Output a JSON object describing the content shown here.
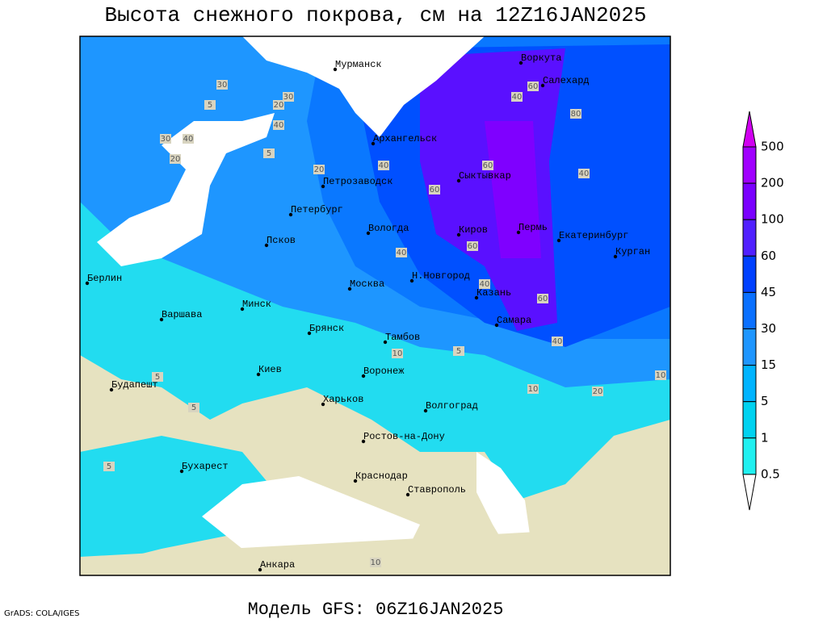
{
  "title": "Высота снежного покрова, см на 12Z16JAN2025",
  "footer": "Модель GFS: 06Z16JAN2025",
  "credit": "GrADS: COLA/IGES",
  "cities": [
    "Мурманск",
    "Воркута",
    "Салехард",
    "Архангельск",
    "Сыктывкар",
    "Петрозаводск",
    "Петербург",
    "Вологда",
    "Киров",
    "Пермь",
    "Екатеринбург",
    "Курган",
    "Псков",
    "Н.Новгород",
    "Москва",
    "Казань",
    "Берлин",
    "Варшава",
    "Минск",
    "Брянск",
    "Тамбов",
    "Самара",
    "Киев",
    "Воронеж",
    "Будапешт",
    "Харьков",
    "Волгоград",
    "Ростов-на-Дону",
    "Бухарест",
    "Краснодар",
    "Ставрополь",
    "Анкара"
  ],
  "contour_labels": [
    30,
    5,
    20,
    30,
    40,
    30,
    40,
    20,
    5,
    20,
    40,
    60,
    40,
    60,
    40,
    60,
    40,
    10,
    5,
    10,
    20,
    10,
    40,
    60,
    80,
    40,
    60,
    5,
    5,
    5,
    10
  ],
  "legend": {
    "levels": [
      500,
      200,
      100,
      60,
      45,
      30,
      15,
      5,
      1,
      0.5
    ],
    "colors": [
      "#d000f0",
      "#a000ff",
      "#7a00ff",
      "#5020ff",
      "#0040ff",
      "#0a70ff",
      "#1e96ff",
      "#00b4ff",
      "#00d2f0",
      "#20f0f0",
      "#ffffff"
    ]
  }
}
